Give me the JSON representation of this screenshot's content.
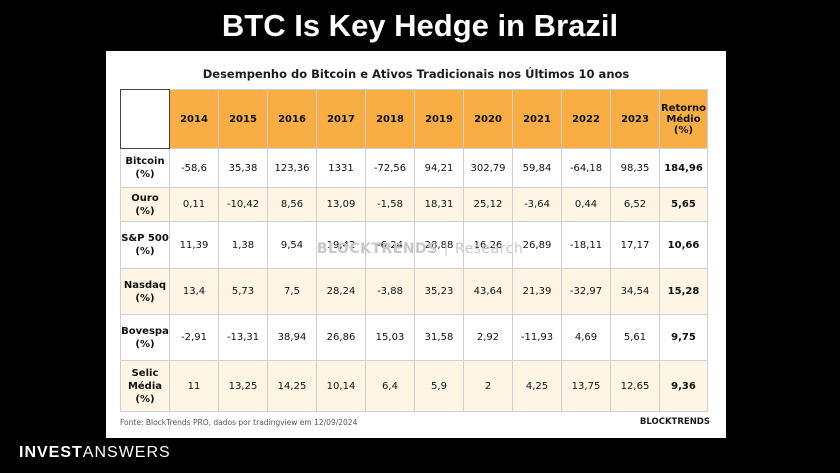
{
  "slide": {
    "title": "BTC Is Key Hedge in Brazil"
  },
  "table": {
    "title": "Desempenho do Bitcoin e Ativos Tradicionais nos Últimos 10 anos",
    "columns": [
      "2014",
      "2015",
      "2016",
      "2017",
      "2018",
      "2019",
      "2020",
      "2021",
      "2022",
      "2023"
    ],
    "avg_header_lines": [
      "Retorno",
      "Médio",
      "(%)"
    ],
    "rows": [
      {
        "label_lines": [
          "Bitcoin",
          "(%)"
        ],
        "values": [
          "-58,6",
          "35,38",
          "123,36",
          "1331",
          "-72,56",
          "94,21",
          "302,79",
          "59,84",
          "-64,18",
          "98,35"
        ],
        "avg": "184,96"
      },
      {
        "label_lines": [
          "Ouro (%)"
        ],
        "values": [
          "0,11",
          "-10,42",
          "8,56",
          "13,09",
          "-1,58",
          "18,31",
          "25,12",
          "-3,64",
          "0,44",
          "6,52"
        ],
        "avg": "5,65"
      },
      {
        "label_lines": [
          "S&P 500",
          "(%)"
        ],
        "values": [
          "11,39",
          "1,38",
          "9,54",
          "19,42",
          "-6,24",
          "28,88",
          "16,26",
          "26,89",
          "-18,11",
          "17,17"
        ],
        "avg": "10,66"
      },
      {
        "label_lines": [
          "Nasdaq",
          "(%)"
        ],
        "values": [
          "13,4",
          "5,73",
          "7,5",
          "28,24",
          "-3,88",
          "35,23",
          "43,64",
          "21,39",
          "-32,97",
          "34,54"
        ],
        "avg": "15,28"
      },
      {
        "label_lines": [
          "Bovespa",
          "(%)"
        ],
        "values": [
          "-2,91",
          "-13,31",
          "38,94",
          "26,86",
          "15,03",
          "31,58",
          "2,92",
          "-11,93",
          "4,69",
          "5,61"
        ],
        "avg": "9,75"
      },
      {
        "label_lines": [
          "Selic",
          "Média",
          "(%)"
        ],
        "values": [
          "11",
          "13,25",
          "14,25",
          "10,14",
          "6,4",
          "5,9",
          "2",
          "4,25",
          "13,75",
          "12,65"
        ],
        "avg": "9,36"
      }
    ],
    "source": "Fonte: BlockTrends PRO, dados por tradingview em 12/09/2024",
    "logo": "BLOCKTRENDS",
    "watermark": {
      "brand": "BLOCKTRENDS",
      "sep": "|",
      "sub": "Research"
    }
  },
  "footer": {
    "brand_bold": "INVEST",
    "brand_light": "ANSWERS"
  },
  "colors": {
    "header_bg": "#f8ad45",
    "alt_row_bg": "#fef5e5",
    "background": "#000000"
  }
}
